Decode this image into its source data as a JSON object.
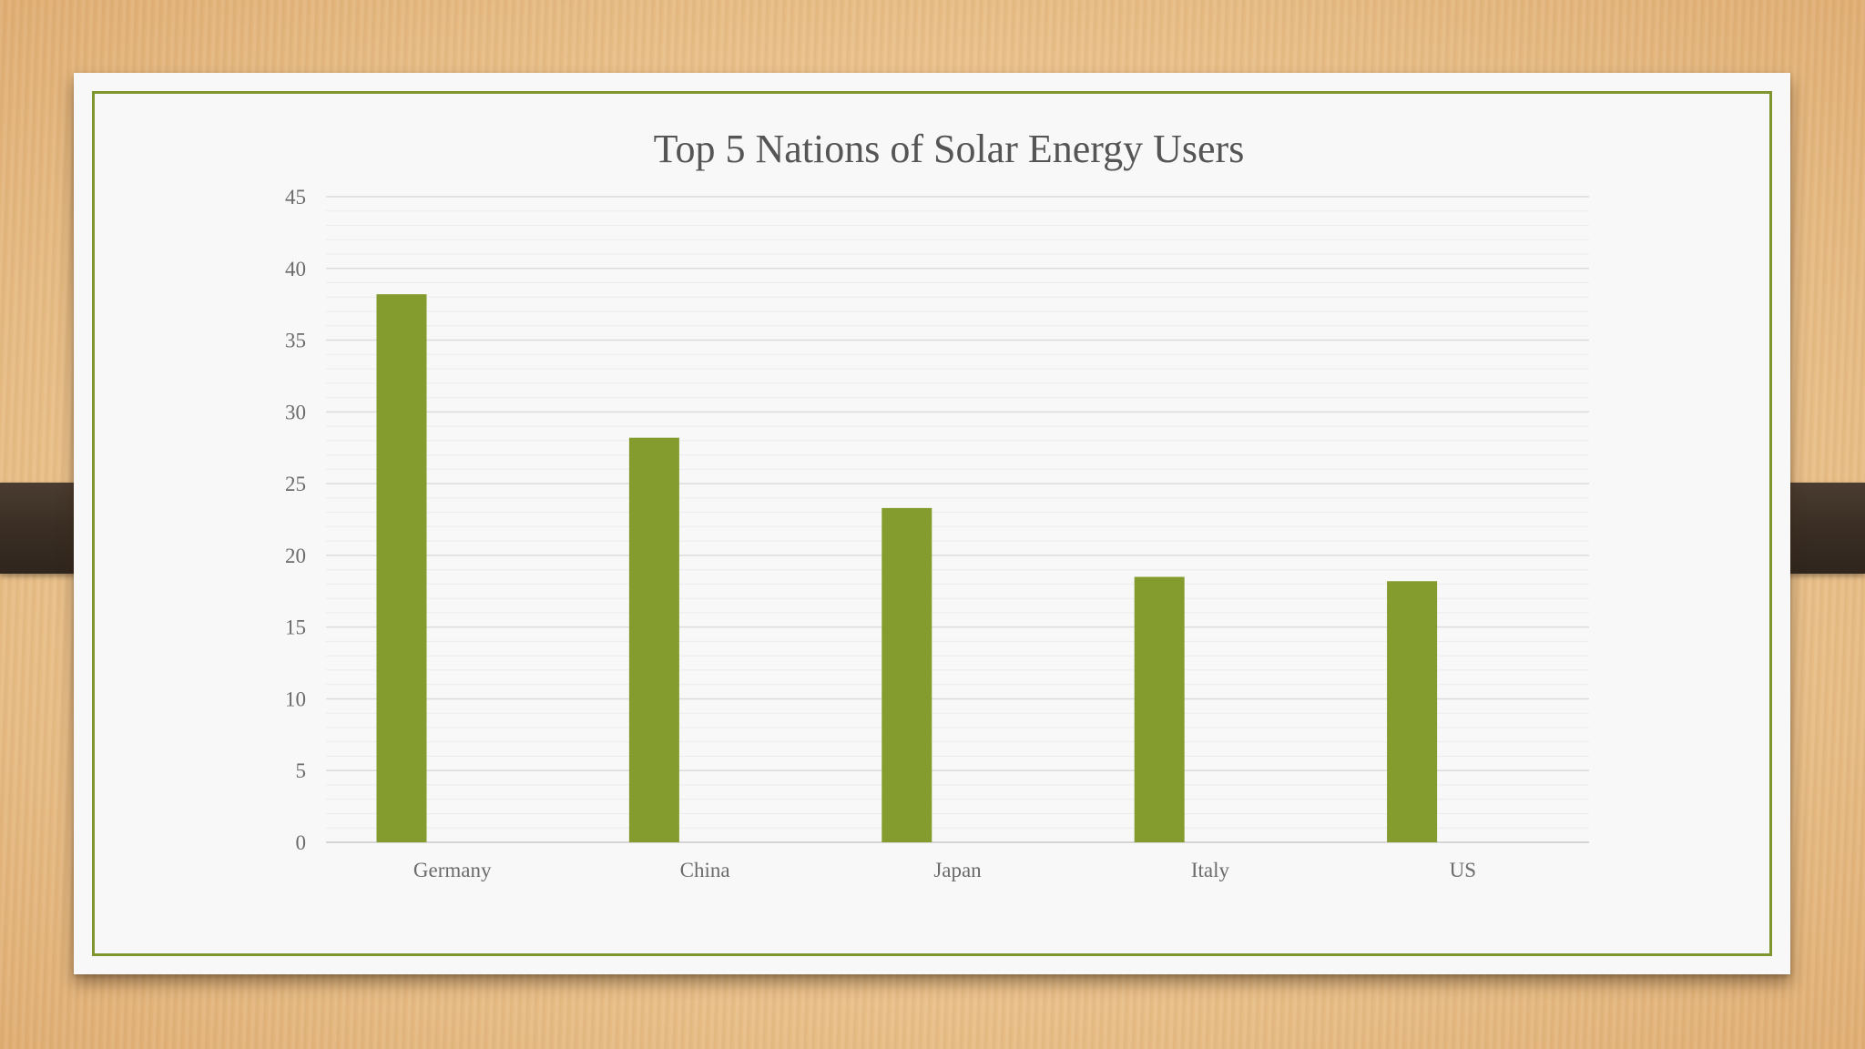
{
  "chart_data": {
    "type": "bar",
    "title": "Top 5 Nations of Solar Energy Users",
    "categories": [
      "Germany",
      "China",
      "Japan",
      "Italy",
      "US"
    ],
    "values": [
      38.2,
      28.2,
      23.3,
      18.5,
      18.2
    ],
    "ylim": [
      0,
      45
    ],
    "yticks": [
      "0",
      "5",
      "10",
      "15",
      "20",
      "25",
      "30",
      "35",
      "40",
      "45"
    ],
    "xlabel": "",
    "ylabel": "",
    "grid": true,
    "legend": "none",
    "bar_color": "#849b2e",
    "grid_color": "#dcdcdc"
  }
}
